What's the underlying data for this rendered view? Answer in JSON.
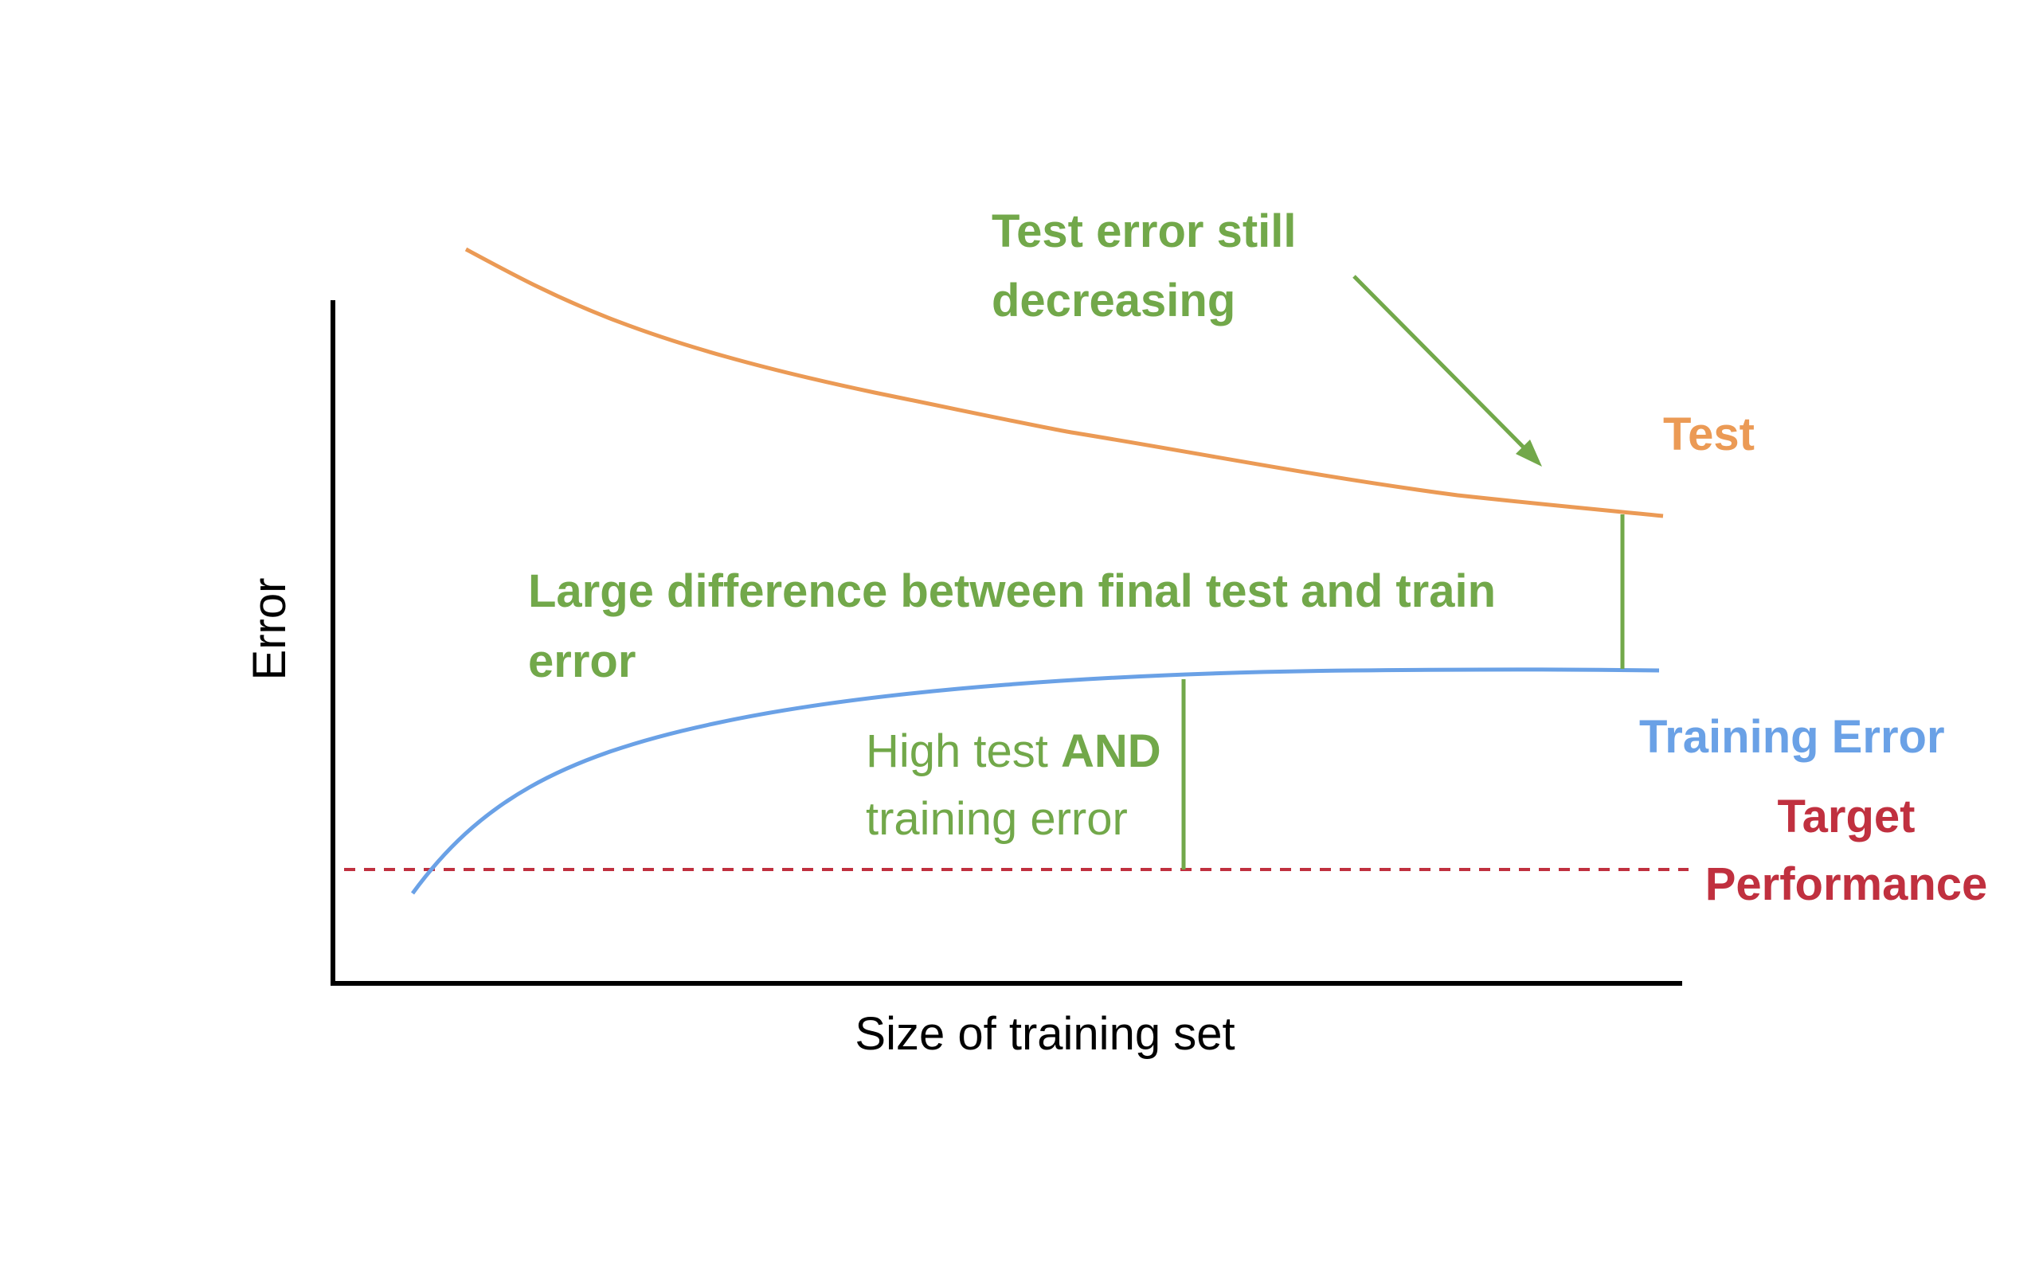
{
  "axes": {
    "x_label": "Size of training set",
    "y_label": "Error"
  },
  "curves": {
    "test": {
      "label": "Test",
      "color": "#eb9a55"
    },
    "training": {
      "label": "Training Error",
      "color": "#6aa1e6"
    },
    "target": {
      "label_line1": "Target",
      "label_line2": "Performance",
      "color": "#c0303f"
    }
  },
  "annotations": {
    "color": "#72a84a",
    "still_decreasing": {
      "line1": "Test error still",
      "line2": "decreasing"
    },
    "large_gap": {
      "line1": "Large difference between final test and train",
      "line2": "error"
    },
    "high_error": {
      "line1_a": "High test ",
      "line1_b": "AND",
      "line2": "training error"
    }
  },
  "axis_color": "#000000"
}
